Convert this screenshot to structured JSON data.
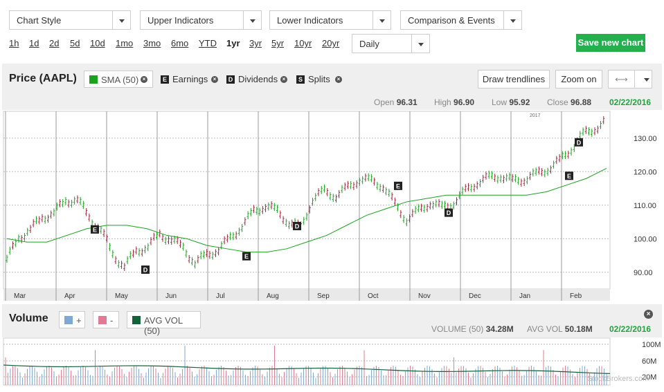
{
  "toolbar": {
    "dropdowns": [
      {
        "id": "chart-style",
        "label": "Chart Style"
      },
      {
        "id": "upper-indicators",
        "label": "Upper Indicators"
      },
      {
        "id": "lower-indicators",
        "label": "Lower Indicators"
      },
      {
        "id": "comparison-events",
        "label": "Comparison & Events"
      }
    ],
    "ranges": [
      "1h",
      "1d",
      "2d",
      "5d",
      "10d",
      "1mo",
      "3mo",
      "6mo",
      "YTD",
      "1yr",
      "3yr",
      "5yr",
      "10yr",
      "20yr"
    ],
    "active_range": "1yr",
    "interval": "Daily",
    "save_label": "Save new chart"
  },
  "price_panel": {
    "title": "Price (AAPL)",
    "sma_chip": "SMA (50)",
    "sma_color": "#19a31c",
    "events": [
      {
        "badge": "E",
        "label": "Earnings"
      },
      {
        "badge": "D",
        "label": "Dividends"
      },
      {
        "badge": "S",
        "label": "Splits"
      }
    ],
    "draw_trendlines": "Draw trendlines",
    "zoom_on": "Zoom on",
    "ohlc": {
      "open_label": "Open",
      "open": "96.31",
      "high_label": "High",
      "high": "96.90",
      "low_label": "Low",
      "low": "95.92",
      "close_label": "Close",
      "close": "96.88"
    },
    "date": "02/22/2016",
    "year_marker": "2017"
  },
  "volume_panel": {
    "title": "Volume",
    "up_chip": "+",
    "down_chip": "-",
    "up_color": "#7fa9d4",
    "down_color": "#e07b93",
    "avg_chip": "AVG VOL (50)",
    "avg_color": "#14623a",
    "volume_label": "VOLUME (50)",
    "volume_value": "34.28M",
    "avg_label": "AVG VOL",
    "avg_value": "50.18M",
    "date": "02/22/2016",
    "y_ticks": [
      "100M",
      "60M",
      "20M"
    ],
    "watermark": "StockBrokers.com"
  },
  "chart_data": {
    "type": "line",
    "x_labels": [
      "Mar",
      "Apr",
      "May",
      "Jun",
      "Jul",
      "Aug",
      "Sep",
      "Oct",
      "Nov",
      "Dec",
      "Jan",
      "Feb"
    ],
    "y_ticks": [
      90,
      100,
      110,
      120,
      130
    ],
    "ylim": [
      85,
      138
    ],
    "series": [
      {
        "name": "AAPL",
        "values": [
          94,
          100,
          103,
          106,
          108,
          111,
          112,
          106,
          103,
          95,
          92,
          96,
          98,
          101,
          100,
          97,
          93,
          95,
          97,
          100,
          104,
          108,
          110,
          108,
          105,
          103,
          112,
          114,
          113,
          115,
          118,
          117,
          116,
          110,
          106,
          108,
          111,
          109,
          111,
          114,
          117,
          118,
          119,
          117,
          118,
          119,
          121,
          123,
          127,
          131,
          133,
          135
        ]
      },
      {
        "name": "SMA (50)",
        "values": [
          100,
          99,
          99,
          101,
          103,
          104,
          104,
          103,
          101,
          100,
          98,
          97,
          96,
          96,
          97,
          99,
          101,
          104,
          107,
          109,
          111,
          112,
          113,
          113,
          113,
          113,
          113,
          114,
          116,
          118,
          121
        ]
      }
    ],
    "events": [
      {
        "type": "E",
        "x": "Apr",
        "y": 104
      },
      {
        "type": "D",
        "x": "May",
        "y": 92
      },
      {
        "type": "D",
        "x": "Aug",
        "y": 105
      },
      {
        "type": "E",
        "x": "Jul",
        "y": 96
      },
      {
        "type": "E",
        "x": "Oct",
        "y": 117
      },
      {
        "type": "D",
        "x": "Nov",
        "y": 109
      },
      {
        "type": "D",
        "x": "Feb",
        "y": 130
      },
      {
        "type": "E",
        "x": "Feb",
        "y": 120
      }
    ],
    "grid": true
  }
}
